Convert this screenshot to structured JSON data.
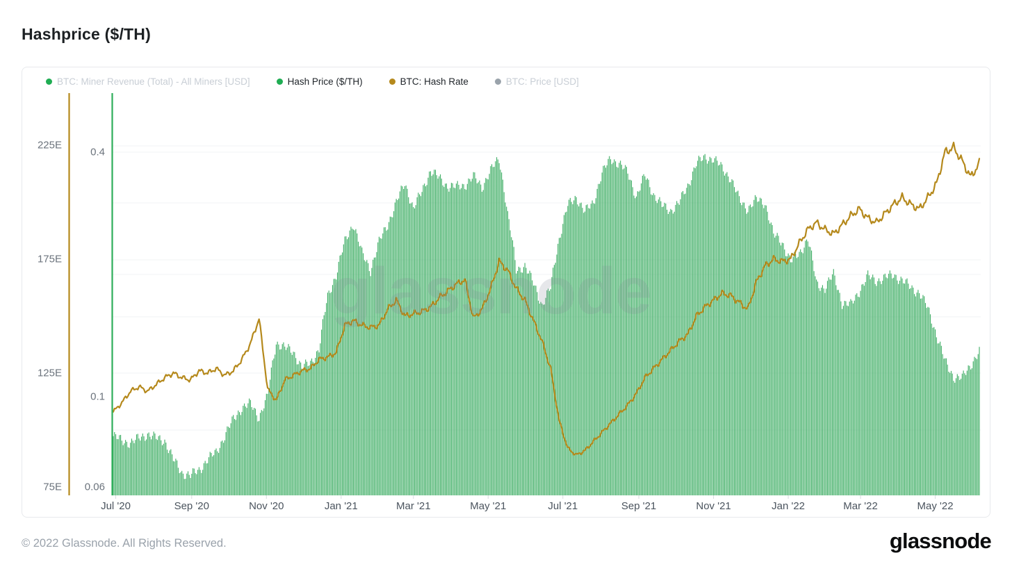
{
  "page": {
    "title": "Hashprice ($/TH)",
    "footer": "© 2022 Glassnode. All Rights Reserved.",
    "brand": "glassnode",
    "watermark": "glassnode"
  },
  "legend": [
    {
      "label": "BTC: Miner Revenue (Total) - All Miners [USD]",
      "dot_color": "#1fad53",
      "active": false
    },
    {
      "label": "Hash Price ($/TH)",
      "dot_color": "#1fad53",
      "active": true
    },
    {
      "label": "BTC: Hash Rate",
      "dot_color": "#b5891c",
      "active": true
    },
    {
      "label": "BTC: Price [USD]",
      "dot_color": "#9aa3ab",
      "active": false
    }
  ],
  "colors": {
    "bar_green": "#3fae65",
    "axis_green": "#2eae5a",
    "line_gold": "#b5891c",
    "gridline": "#f2f3f5",
    "tick": "#d7dade"
  },
  "chart_data": {
    "type": "bar+line",
    "title": "Hashprice ($/TH)",
    "x_axis": {
      "unit": "time",
      "start": "Jun 29 '20",
      "end": "Jun '22",
      "tick_labels": [
        "Jul '20",
        "Sep '20",
        "Nov '20",
        "Jan '21",
        "Mar '21",
        "May '21",
        "Jul '21",
        "Sep '21",
        "Nov '21",
        "Jan '22",
        "Mar '22",
        "May '22"
      ]
    },
    "series": [
      {
        "name": "Hash Price ($/TH)",
        "type": "bar",
        "color": "#3fae65",
        "y_axis": {
          "scale": "log",
          "unit": "$/TH",
          "tick_labels": [
            "0.4",
            "0.1",
            "0.06"
          ],
          "tick_values": [
            0.4,
            0.1,
            0.06
          ]
        },
        "sampling": "weekly",
        "weekly_values": [
          0.08,
          0.078,
          0.077,
          0.079,
          0.081,
          0.079,
          0.078,
          0.07,
          0.065,
          0.064,
          0.066,
          0.07,
          0.073,
          0.08,
          0.088,
          0.094,
          0.096,
          0.089,
          0.1,
          0.136,
          0.132,
          0.129,
          0.118,
          0.121,
          0.131,
          0.176,
          0.2,
          0.24,
          0.267,
          0.225,
          0.205,
          0.24,
          0.265,
          0.3,
          0.335,
          0.29,
          0.32,
          0.36,
          0.345,
          0.33,
          0.328,
          0.332,
          0.348,
          0.328,
          0.36,
          0.385,
          0.28,
          0.205,
          0.21,
          0.19,
          0.168,
          0.185,
          0.245,
          0.295,
          0.31,
          0.285,
          0.3,
          0.355,
          0.385,
          0.375,
          0.355,
          0.31,
          0.35,
          0.315,
          0.295,
          0.287,
          0.3,
          0.33,
          0.375,
          0.388,
          0.385,
          0.365,
          0.345,
          0.305,
          0.29,
          0.305,
          0.3,
          0.25,
          0.24,
          0.215,
          0.225,
          0.245,
          0.19,
          0.185,
          0.2,
          0.17,
          0.168,
          0.182,
          0.198,
          0.193,
          0.196,
          0.2,
          0.193,
          0.186,
          0.18,
          0.165,
          0.142,
          0.122,
          0.112,
          0.111,
          0.12,
          0.129
        ]
      },
      {
        "name": "BTC: Hash Rate",
        "type": "line",
        "color": "#b5891c",
        "y_axis": {
          "scale": "linear",
          "unit": "EH/s",
          "tick_labels": [
            "225E",
            "175E",
            "125E",
            "75E"
          ],
          "tick_values": [
            225,
            175,
            125,
            75
          ]
        },
        "sampling": "weekly",
        "weekly_values": [
          108,
          112,
          117,
          119,
          117,
          120,
          123,
          125,
          123,
          122,
          126,
          125,
          127,
          124,
          126,
          131,
          138,
          149,
          118,
          113,
          122,
          124,
          126,
          127,
          131,
          132,
          134,
          146,
          148,
          146,
          145,
          146,
          153,
          157,
          150,
          151,
          152,
          154,
          158,
          161,
          164,
          166,
          149,
          153,
          162,
          174,
          170,
          162,
          157,
          148,
          139,
          127,
          104,
          92,
          89,
          91,
          95,
          99,
          103,
          107,
          111,
          116,
          123,
          127,
          131,
          135,
          139,
          142,
          150,
          154,
          157,
          160,
          159,
          156,
          153,
          165,
          172,
          175,
          174,
          175,
          182,
          188,
          191,
          188,
          186,
          190,
          194,
          197,
          193,
          191,
          195,
          199,
          202,
          199,
          197,
          202,
          208,
          222,
          224,
          218,
          211,
          217
        ]
      }
    ],
    "legend_position": "top",
    "grid": "horizontal-faint"
  }
}
